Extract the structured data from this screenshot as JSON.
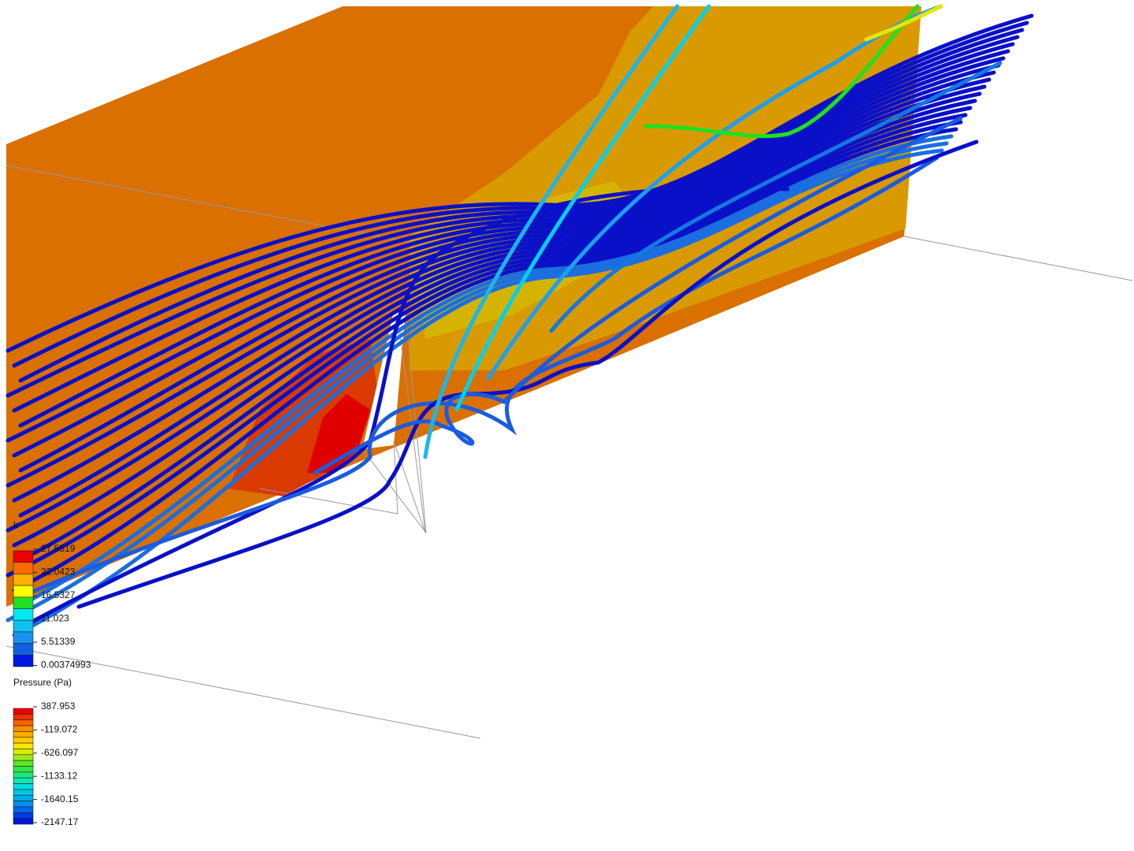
{
  "legends": [
    {
      "title": "k",
      "labels": [
        27.5519,
        22.0423,
        16.5327,
        11.023,
        5.51339,
        0.00374993
      ]
    },
    {
      "title": "Pressure (Pa)",
      "labels": [
        387.953,
        -119.072,
        -626.097,
        -1133.12,
        -1640.15,
        -2147.17
      ]
    }
  ]
}
